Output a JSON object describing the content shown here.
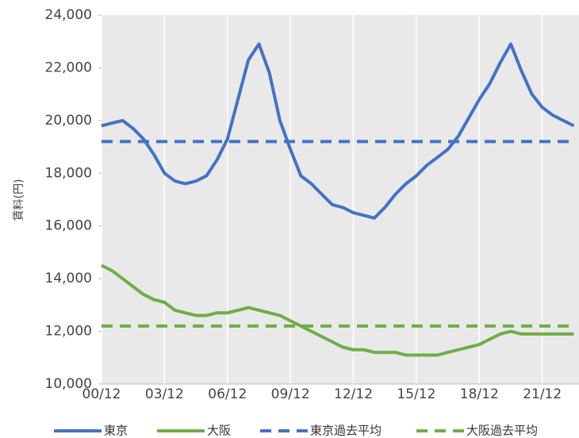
{
  "chart_data": {
    "type": "line",
    "ylabel": "賃料(円)",
    "categories": [
      "00/12",
      null,
      null,
      null,
      null,
      null,
      "03/12",
      null,
      null,
      null,
      null,
      null,
      "06/12",
      null,
      null,
      null,
      null,
      null,
      "09/12",
      null,
      null,
      null,
      null,
      null,
      "12/12",
      null,
      null,
      null,
      null,
      null,
      "15/12",
      null,
      null,
      null,
      null,
      null,
      "18/12",
      null,
      null,
      null,
      null,
      null,
      "21/12",
      null,
      null,
      null
    ],
    "ylim": [
      10000,
      24000
    ],
    "yticks": [
      {
        "value": 10000,
        "label": "10,000"
      },
      {
        "value": 12000,
        "label": "12,000"
      },
      {
        "value": 14000,
        "label": "14,000"
      },
      {
        "value": 16000,
        "label": "16,000"
      },
      {
        "value": 18000,
        "label": "18,000"
      },
      {
        "value": 20000,
        "label": "20,000"
      },
      {
        "value": 22000,
        "label": "22,000"
      },
      {
        "value": 24000,
        "label": "24,000"
      }
    ],
    "grid": true,
    "legend": "bottom",
    "series": [
      {
        "name": "東京",
        "color": "#4472c4",
        "style": "solid",
        "values": [
          19800,
          19900,
          20000,
          19700,
          19300,
          18700,
          18000,
          17700,
          17600,
          17700,
          17900,
          18500,
          19300,
          20800,
          22300,
          22900,
          21800,
          20000,
          18900,
          17900,
          17600,
          17200,
          16800,
          16700,
          16500,
          16400,
          16300,
          16700,
          17200,
          17600,
          17900,
          18300,
          18600,
          18900,
          19400,
          20100,
          20800,
          21400,
          22200,
          22900,
          21900,
          21000,
          20500,
          20200,
          20000,
          19800
        ]
      },
      {
        "name": "大阪",
        "color": "#70ad47",
        "style": "solid",
        "values": [
          14500,
          14300,
          14000,
          13700,
          13400,
          13200,
          13100,
          12800,
          12700,
          12600,
          12600,
          12700,
          12700,
          12800,
          12900,
          12800,
          12700,
          12600,
          12400,
          12200,
          12000,
          11800,
          11600,
          11400,
          11300,
          11300,
          11200,
          11200,
          11200,
          11100,
          11100,
          11100,
          11100,
          11200,
          11300,
          11400,
          11500,
          11700,
          11900,
          12000,
          11900,
          11900,
          11900,
          11900,
          11900,
          11900
        ]
      },
      {
        "name": "東京過去平均",
        "color": "#4472c4",
        "style": "dashed",
        "values": [
          19200,
          19200,
          19200,
          19200,
          19200,
          19200,
          19200,
          19200,
          19200,
          19200,
          19200,
          19200,
          19200,
          19200,
          19200,
          19200,
          19200,
          19200,
          19200,
          19200,
          19200,
          19200,
          19200,
          19200,
          19200,
          19200,
          19200,
          19200,
          19200,
          19200,
          19200,
          19200,
          19200,
          19200,
          19200,
          19200,
          19200,
          19200,
          19200,
          19200,
          19200,
          19200,
          19200,
          19200,
          19200,
          19200
        ]
      },
      {
        "name": "大阪過去平均",
        "color": "#70ad47",
        "style": "dashed",
        "values": [
          12200,
          12200,
          12200,
          12200,
          12200,
          12200,
          12200,
          12200,
          12200,
          12200,
          12200,
          12200,
          12200,
          12200,
          12200,
          12200,
          12200,
          12200,
          12200,
          12200,
          12200,
          12200,
          12200,
          12200,
          12200,
          12200,
          12200,
          12200,
          12200,
          12200,
          12200,
          12200,
          12200,
          12200,
          12200,
          12200,
          12200,
          12200,
          12200,
          12200,
          12200,
          12200,
          12200,
          12200,
          12200,
          12200
        ]
      }
    ]
  }
}
